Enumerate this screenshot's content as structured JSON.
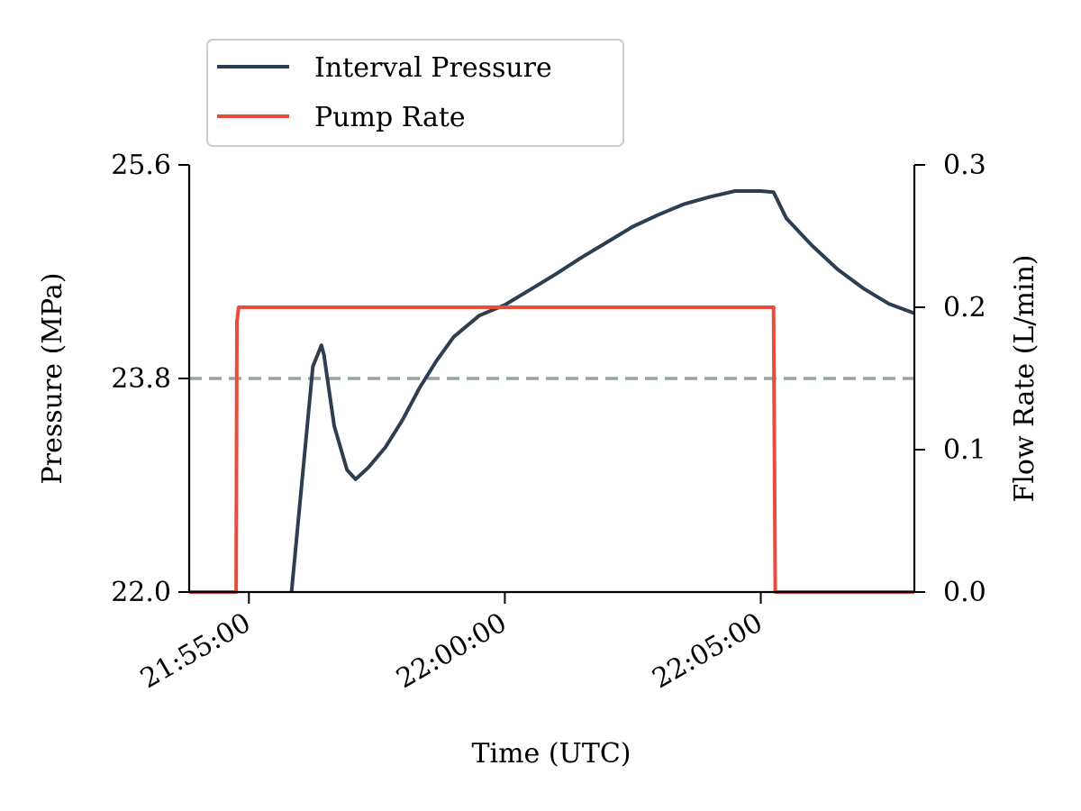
{
  "chart_data": {
    "type": "line",
    "title": "",
    "xlabel": "Time (UTC)",
    "ylabel": "Pressure (MPa)",
    "y2label": "Flow Rate (L/min)",
    "xlim": [
      "21:53:50",
      "22:08:00"
    ],
    "ylim": [
      22.0,
      25.6
    ],
    "y2lim": [
      0.0,
      0.3
    ],
    "x_ticks": [
      "21:55:00",
      "22:00:00",
      "22:05:00"
    ],
    "y_ticks": [
      "22.0",
      "23.8",
      "25.6"
    ],
    "y2_ticks": [
      "0.0",
      "0.1",
      "0.2",
      "0.3"
    ],
    "grid": false,
    "legend_position": "top-left",
    "colors": {
      "pressure": "#2c3e50",
      "pump_rate": "#e74c3c",
      "reference": "#95a5a6"
    },
    "reference_line": {
      "axis": "y",
      "value": 23.8,
      "style": "dashed"
    },
    "series": [
      {
        "name": "Interval Pressure",
        "axis": "left",
        "x": [
          "21:55:50",
          "21:56:15",
          "21:56:25",
          "21:56:28",
          "21:56:40",
          "21:56:55",
          "21:57:05",
          "21:57:20",
          "21:57:40",
          "21:58:00",
          "21:58:20",
          "21:58:40",
          "21:59:00",
          "21:59:30",
          "22:00:00",
          "22:00:30",
          "22:01:00",
          "22:01:30",
          "22:02:00",
          "22:02:30",
          "22:03:00",
          "22:03:30",
          "22:04:00",
          "22:04:30",
          "22:05:00",
          "22:05:15",
          "22:05:30",
          "22:06:00",
          "22:06:30",
          "22:07:00",
          "22:07:30",
          "22:08:00"
        ],
        "values": [
          22.0,
          23.9,
          24.08,
          24.0,
          23.4,
          23.03,
          22.95,
          23.05,
          23.22,
          23.45,
          23.72,
          23.95,
          24.15,
          24.33,
          24.42,
          24.55,
          24.68,
          24.82,
          24.95,
          25.08,
          25.18,
          25.27,
          25.33,
          25.38,
          25.38,
          25.37,
          25.15,
          24.92,
          24.72,
          24.56,
          24.43,
          24.35
        ]
      },
      {
        "name": "Pump Rate",
        "axis": "right",
        "x": [
          "21:53:50",
          "21:54:45",
          "21:54:46",
          "21:54:48",
          "22:05:15",
          "22:05:17",
          "22:08:00"
        ],
        "values": [
          0.0,
          0.0,
          0.19,
          0.2,
          0.2,
          0.0,
          0.0
        ]
      }
    ]
  }
}
